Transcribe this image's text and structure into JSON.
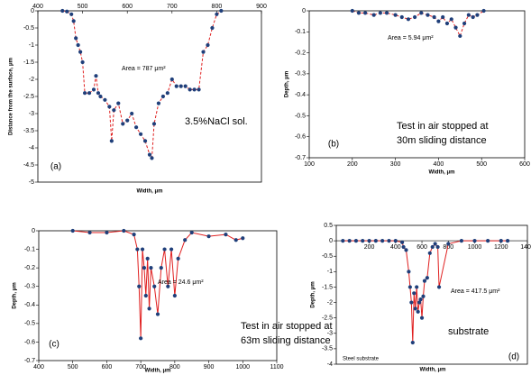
{
  "chart_data": [
    {
      "type": "line",
      "panel_label": "(a)",
      "area_label": "Area = 787  μm²",
      "annotation": [
        "3.5%NaCl sol."
      ],
      "xlabel": "Width, μm",
      "ylabel": "Distance from the surface, μm",
      "color": "#e02020",
      "marker_color": "#1f3f7a",
      "dashed": true,
      "xlim": [
        400,
        900
      ],
      "ylim": [
        -5,
        0
      ],
      "xticks": [
        400,
        500,
        600,
        700,
        800,
        900
      ],
      "yticks": [
        0,
        -0.5,
        -1,
        -1.5,
        -2,
        -2.5,
        -3,
        -3.5,
        -4,
        -4.5,
        -5
      ],
      "x": [
        455,
        465,
        475,
        480,
        485,
        490,
        495,
        500,
        505,
        515,
        525,
        530,
        535,
        540,
        550,
        560,
        565,
        570,
        580,
        590,
        600,
        610,
        620,
        630,
        640,
        650,
        655,
        660,
        670,
        680,
        690,
        700,
        710,
        720,
        730,
        740,
        750,
        760,
        770,
        780,
        790,
        800,
        810
      ],
      "values": [
        0,
        -0.02,
        -0.1,
        -0.3,
        -0.8,
        -1.0,
        -1.2,
        -1.5,
        -2.4,
        -2.4,
        -2.3,
        -1.9,
        -2.4,
        -2.5,
        -2.6,
        -2.8,
        -3.8,
        -2.9,
        -2.7,
        -3.3,
        -3.2,
        -3.0,
        -3.4,
        -3.6,
        -3.8,
        -4.2,
        -4.3,
        -3.3,
        -2.7,
        -2.5,
        -2.4,
        -2.0,
        -2.2,
        -2.2,
        -2.2,
        -2.3,
        -2.3,
        -2.3,
        -1.2,
        -1.0,
        -0.5,
        -0.1,
        0
      ]
    },
    {
      "type": "line",
      "panel_label": "(b)",
      "area_label": "Area = 5.94  μm²",
      "annotation": [
        "Test in air stopped at",
        "30m sliding distance"
      ],
      "xlabel": "Width, μm",
      "ylabel": "Depth, μm",
      "color": "#e02020",
      "marker_color": "#1f3f7a",
      "dashed": true,
      "xlim": [
        100,
        600
      ],
      "ylim": [
        -0.7,
        0
      ],
      "xticks": [
        100,
        200,
        300,
        400,
        500,
        600
      ],
      "yticks": [
        0,
        -0.1,
        -0.2,
        -0.3,
        -0.4,
        -0.5,
        -0.6,
        -0.7
      ],
      "x": [
        200,
        215,
        230,
        250,
        265,
        280,
        300,
        315,
        330,
        345,
        360,
        375,
        390,
        400,
        410,
        420,
        430,
        440,
        450,
        460,
        470,
        480,
        490,
        505
      ],
      "values": [
        0,
        -0.01,
        -0.01,
        -0.02,
        -0.01,
        -0.01,
        -0.02,
        -0.03,
        -0.04,
        -0.03,
        -0.01,
        -0.02,
        -0.03,
        -0.05,
        -0.03,
        -0.06,
        -0.04,
        -0.08,
        -0.12,
        -0.06,
        -0.02,
        -0.03,
        -0.02,
        0
      ]
    },
    {
      "type": "line",
      "panel_label": "(c)",
      "area_label": "Area = 24.6  μm²",
      "annotation": [
        "Test in air stopped at",
        "63m sliding distance"
      ],
      "xlabel": "Width, μm",
      "ylabel": "Depth, μm",
      "color": "#e02020",
      "marker_color": "#1f3f7a",
      "dashed": false,
      "xlim": [
        400,
        1100
      ],
      "ylim": [
        -0.7,
        0
      ],
      "xticks": [
        400,
        500,
        600,
        700,
        800,
        900,
        1000,
        1100
      ],
      "yticks": [
        0,
        -0.1,
        -0.2,
        -0.3,
        -0.4,
        -0.5,
        -0.6,
        -0.7
      ],
      "x": [
        500,
        550,
        600,
        650,
        680,
        690,
        695,
        700,
        705,
        710,
        715,
        720,
        725,
        730,
        740,
        750,
        760,
        770,
        780,
        790,
        800,
        810,
        830,
        850,
        900,
        950,
        980,
        1000
      ],
      "values": [
        0,
        -0.01,
        -0.01,
        0,
        -0.02,
        -0.1,
        -0.3,
        -0.58,
        -0.1,
        -0.2,
        -0.35,
        -0.15,
        -0.42,
        -0.2,
        -0.3,
        -0.45,
        -0.2,
        -0.1,
        -0.3,
        -0.1,
        -0.35,
        -0.15,
        -0.05,
        -0.01,
        -0.03,
        -0.02,
        -0.05,
        -0.04
      ]
    },
    {
      "type": "line",
      "panel_label": "(d)",
      "area_label": "Area = 417.5  μm²",
      "annotation": [
        "substrate"
      ],
      "footnote": "Steel substrate",
      "xlabel": "Width, μm",
      "ylabel": "Depth, μm",
      "color": "#e02020",
      "marker_color": "#1f3f7a",
      "dashed": false,
      "xlim": [
        -50,
        1400
      ],
      "ylim": [
        -4,
        0.5
      ],
      "xticks": [
        200,
        400,
        600,
        800,
        1000,
        1200,
        1400
      ],
      "yticks": [
        0.5,
        0,
        -0.5,
        -1,
        -1.5,
        -2,
        -2.5,
        -3,
        -3.5,
        -4
      ],
      "x": [
        0,
        50,
        100,
        150,
        200,
        250,
        300,
        350,
        400,
        450,
        460,
        480,
        500,
        510,
        520,
        530,
        540,
        550,
        560,
        570,
        580,
        590,
        600,
        610,
        620,
        640,
        660,
        680,
        700,
        720,
        730,
        800,
        900,
        1000,
        1100,
        1200,
        1250
      ],
      "values": [
        0,
        0,
        0,
        0,
        0,
        0,
        0,
        0,
        0,
        -0.05,
        -0.2,
        -0.3,
        -1.0,
        -1.5,
        -2.0,
        -3.3,
        -1.7,
        -2.2,
        -1.5,
        -2.3,
        -2.0,
        -1.9,
        -2.5,
        -1.8,
        -1.3,
        -1.2,
        -0.4,
        -0.2,
        -0.1,
        -0.2,
        -1.5,
        -0.1,
        0,
        0,
        0,
        0,
        0
      ]
    }
  ]
}
